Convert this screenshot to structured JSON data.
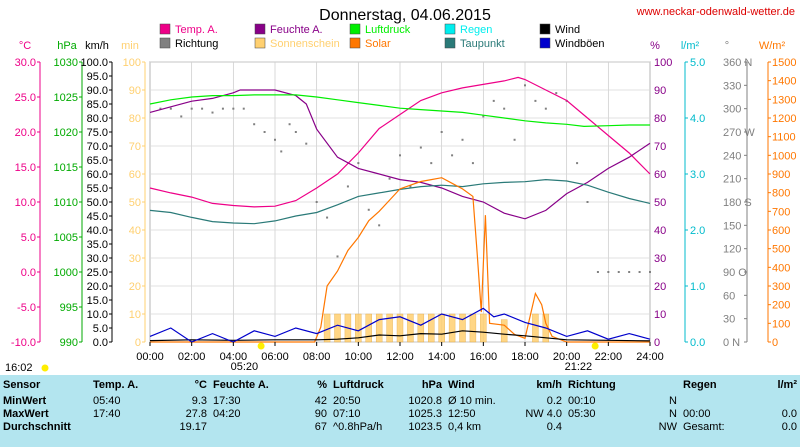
{
  "chart_data": {
    "type": "line",
    "title": "Donnerstag, 04.06.2015",
    "source": "www.neckar-odenwald-wetter.de",
    "x_ticks": [
      "00:00",
      "02:00",
      "04:00",
      "06:00",
      "08:00",
      "10:00",
      "12:00",
      "14:00",
      "16:00",
      "18:00",
      "20:00",
      "22:00",
      "24:00"
    ],
    "sunrise": "05:20",
    "sunset": "21:22",
    "daylength": "16:02",
    "legend": [
      {
        "label": "Temp. A.",
        "color": "#ee0088"
      },
      {
        "label": "Richtung",
        "color": "#808080"
      },
      {
        "label": "Feuchte A.",
        "color": "#880088"
      },
      {
        "label": "Sonnenschein",
        "color": "#ffd070"
      },
      {
        "label": "Luftdruck",
        "color": "#00ee00"
      },
      {
        "label": "Solar",
        "color": "#ff7700"
      },
      {
        "label": "Regen",
        "color": "#00eeee"
      },
      {
        "label": "Taupunkt",
        "color": "#2a7a78"
      },
      {
        "label": "Wind",
        "color": "#000000"
      },
      {
        "label": "Windböen",
        "color": "#0000cc"
      }
    ],
    "axes_left": [
      {
        "unit": "°C",
        "color": "#ee0088",
        "ticks": [
          "30.0",
          "25.0",
          "20.0",
          "15.0",
          "10.0",
          "5.0",
          "0.0",
          "-5.0",
          "-10.0"
        ]
      },
      {
        "unit": "hPa",
        "color": "#00aa00",
        "ticks": [
          "1030",
          "1025",
          "1020",
          "1015",
          "1010",
          "1005",
          "1000",
          "995",
          "990"
        ]
      },
      {
        "unit": "km/h",
        "color": "#000000",
        "ticks": [
          "100.0",
          "95.0",
          "90.0",
          "85.0",
          "80.0",
          "75.0",
          "70.0",
          "65.0",
          "60.0",
          "55.0",
          "50.0",
          "45.0",
          "40.0",
          "35.0",
          "30.0",
          "25.0",
          "20.0",
          "15.0",
          "10.0",
          "5.0",
          "0.0"
        ]
      },
      {
        "unit": "min",
        "color": "#ffd070",
        "ticks": [
          "100",
          "90",
          "80",
          "70",
          "60",
          "50",
          "40",
          "30",
          "20",
          "10",
          "0"
        ]
      }
    ],
    "axes_right": [
      {
        "unit": "%",
        "color": "#880088",
        "ticks": [
          "100",
          "90",
          "80",
          "70",
          "60",
          "50",
          "40",
          "30",
          "20",
          "10",
          "0"
        ]
      },
      {
        "unit": "l/m²",
        "color": "#00bbcc",
        "ticks": [
          "5.0",
          "4.0",
          "3.0",
          "2.0",
          "1.0",
          "0.0"
        ]
      },
      {
        "unit": "°",
        "color": "#808080",
        "ticks": [
          "360 N",
          "330",
          "300",
          "270 W",
          "240",
          "210",
          "180 S",
          "150",
          "120",
          "90 O",
          "60",
          "30",
          "0 N"
        ]
      },
      {
        "unit": "W/m²",
        "color": "#ff7700",
        "ticks": [
          "1500",
          "1400",
          "1300",
          "1200",
          "1100",
          "1000",
          "900",
          "800",
          "700",
          "600",
          "500",
          "400",
          "300",
          "200",
          "100",
          "0"
        ]
      }
    ],
    "series": [
      {
        "name": "Temp. A.",
        "unit": "°C",
        "color": "#ee0088",
        "points": [
          [
            0,
            12.0
          ],
          [
            1,
            11.3
          ],
          [
            2,
            10.7
          ],
          [
            3,
            9.8
          ],
          [
            4,
            9.5
          ],
          [
            5,
            9.3
          ],
          [
            6,
            9.4
          ],
          [
            7,
            10.2
          ],
          [
            8,
            12.0
          ],
          [
            9,
            14.0
          ],
          [
            10,
            17.0
          ],
          [
            11,
            20.5
          ],
          [
            12,
            22.5
          ],
          [
            13,
            24.5
          ],
          [
            14,
            25.6
          ],
          [
            15,
            26.3
          ],
          [
            16,
            26.8
          ],
          [
            17,
            27.3
          ],
          [
            17.67,
            27.8
          ],
          [
            18,
            27.5
          ],
          [
            19,
            26.0
          ],
          [
            20,
            24.5
          ],
          [
            21,
            22.0
          ],
          [
            22,
            19.5
          ],
          [
            23,
            17.0
          ],
          [
            24,
            14.0
          ]
        ]
      },
      {
        "name": "Feuchte A.",
        "unit": "%",
        "color": "#880088",
        "points": [
          [
            0,
            82
          ],
          [
            1,
            84
          ],
          [
            2,
            86
          ],
          [
            3,
            87
          ],
          [
            4,
            89
          ],
          [
            4.33,
            90
          ],
          [
            5,
            90
          ],
          [
            6,
            90
          ],
          [
            7,
            88
          ],
          [
            7.5,
            85
          ],
          [
            8,
            76
          ],
          [
            9,
            66
          ],
          [
            10,
            62
          ],
          [
            11,
            60
          ],
          [
            12,
            58
          ],
          [
            13,
            57
          ],
          [
            14,
            55
          ],
          [
            15,
            52
          ],
          [
            16,
            50
          ],
          [
            17,
            46
          ],
          [
            18,
            44
          ],
          [
            19,
            47
          ],
          [
            20,
            53
          ],
          [
            21,
            57
          ],
          [
            22,
            62
          ],
          [
            23,
            66
          ],
          [
            24,
            71
          ]
        ]
      },
      {
        "name": "Luftdruck",
        "unit": "hPa",
        "color": "#00ee00",
        "points": [
          [
            0,
            1024.0
          ],
          [
            1,
            1024.6
          ],
          [
            2,
            1025.0
          ],
          [
            3,
            1025.2
          ],
          [
            4,
            1025.2
          ],
          [
            5,
            1025.3
          ],
          [
            6,
            1025.3
          ],
          [
            7,
            1025.3
          ],
          [
            8,
            1025.0
          ],
          [
            9,
            1024.6
          ],
          [
            10,
            1024.2
          ],
          [
            11,
            1023.8
          ],
          [
            12,
            1023.4
          ],
          [
            13,
            1023.2
          ],
          [
            14,
            1023.0
          ],
          [
            15,
            1022.8
          ],
          [
            16,
            1022.4
          ],
          [
            17,
            1022.0
          ],
          [
            18,
            1021.6
          ],
          [
            19,
            1021.3
          ],
          [
            20,
            1021.1
          ],
          [
            20.83,
            1020.8
          ],
          [
            22,
            1020.9
          ],
          [
            23,
            1021.0
          ],
          [
            24,
            1021.0
          ]
        ]
      },
      {
        "name": "Taupunkt",
        "unit": "°C",
        "color": "#2a7a78",
        "points": [
          [
            0,
            8.8
          ],
          [
            1,
            8.5
          ],
          [
            2,
            7.8
          ],
          [
            3,
            7.2
          ],
          [
            4,
            7.0
          ],
          [
            5,
            6.9
          ],
          [
            6,
            7.3
          ],
          [
            7,
            8.0
          ],
          [
            8,
            8.5
          ],
          [
            9,
            9.6
          ],
          [
            10,
            10.8
          ],
          [
            11,
            11.3
          ],
          [
            12,
            11.8
          ],
          [
            13,
            12.2
          ],
          [
            14,
            12.4
          ],
          [
            15,
            12.2
          ],
          [
            16,
            12.6
          ],
          [
            17,
            12.8
          ],
          [
            18,
            12.9
          ],
          [
            19,
            13.2
          ],
          [
            20,
            13.0
          ],
          [
            21,
            12.4
          ],
          [
            22,
            11.4
          ],
          [
            23,
            10.5
          ],
          [
            24,
            9.8
          ]
        ]
      },
      {
        "name": "Solar",
        "unit": "W/m²",
        "color": "#ff7700",
        "points": [
          [
            0,
            0
          ],
          [
            7.9,
            0
          ],
          [
            8.2,
            80
          ],
          [
            8.5,
            300
          ],
          [
            9,
            380
          ],
          [
            9.5,
            490
          ],
          [
            10,
            560
          ],
          [
            10.5,
            650
          ],
          [
            11,
            700
          ],
          [
            11.5,
            760
          ],
          [
            12,
            820
          ],
          [
            12.5,
            840
          ],
          [
            13,
            860
          ],
          [
            13.5,
            870
          ],
          [
            14,
            880
          ],
          [
            14.5,
            850
          ],
          [
            15,
            820
          ],
          [
            15.5,
            780
          ],
          [
            15.7,
            480
          ],
          [
            15.9,
            160
          ],
          [
            16.1,
            680
          ],
          [
            16.3,
            100
          ],
          [
            17,
            90
          ],
          [
            17.5,
            40
          ],
          [
            18,
            20
          ],
          [
            18.5,
            260
          ],
          [
            18.8,
            200
          ],
          [
            19,
            100
          ],
          [
            19.3,
            30
          ],
          [
            20,
            0
          ],
          [
            24,
            0
          ]
        ]
      },
      {
        "name": "Wind",
        "unit": "km/h",
        "color": "#000000",
        "points": [
          [
            0,
            0.5
          ],
          [
            2,
            0.8
          ],
          [
            4,
            0.6
          ],
          [
            6,
            0.8
          ],
          [
            8,
            0.8
          ],
          [
            9,
            1.0
          ],
          [
            10,
            1.5
          ],
          [
            11,
            2.5
          ],
          [
            12,
            2.2
          ],
          [
            13,
            3.0
          ],
          [
            14,
            2.8
          ],
          [
            15,
            4.0
          ],
          [
            16,
            3.5
          ],
          [
            17,
            2.8
          ],
          [
            18,
            2.2
          ],
          [
            19,
            1.5
          ],
          [
            20,
            0.8
          ],
          [
            22,
            0.6
          ],
          [
            24,
            0.4
          ]
        ]
      },
      {
        "name": "Windböen",
        "unit": "km/h",
        "color": "#0000cc",
        "points": [
          [
            0,
            2
          ],
          [
            1,
            5
          ],
          [
            2,
            0
          ],
          [
            3,
            3
          ],
          [
            4,
            0
          ],
          [
            5,
            4
          ],
          [
            6,
            2
          ],
          [
            7,
            5
          ],
          [
            8,
            3
          ],
          [
            9,
            6
          ],
          [
            10,
            4
          ],
          [
            11,
            8
          ],
          [
            12,
            9
          ],
          [
            13,
            6
          ],
          [
            14,
            10
          ],
          [
            15,
            8
          ],
          [
            16,
            12
          ],
          [
            16.5,
            9
          ],
          [
            17,
            10
          ],
          [
            18,
            7
          ],
          [
            19,
            5
          ],
          [
            20,
            2
          ],
          [
            21,
            4
          ],
          [
            22,
            1
          ],
          [
            23,
            3
          ],
          [
            24,
            1
          ]
        ]
      }
    ],
    "richtung_points": [
      [
        0.5,
        300
      ],
      [
        1,
        300
      ],
      [
        1.5,
        290
      ],
      [
        2,
        300
      ],
      [
        2.5,
        300
      ],
      [
        3,
        295
      ],
      [
        3.5,
        300
      ],
      [
        4,
        300
      ],
      [
        4.5,
        300
      ],
      [
        5,
        280
      ],
      [
        5.5,
        270
      ],
      [
        6,
        260
      ],
      [
        6.3,
        245
      ],
      [
        6.7,
        280
      ],
      [
        7,
        270
      ],
      [
        7.5,
        255
      ],
      [
        8,
        180
      ],
      [
        8.5,
        160
      ],
      [
        9,
        110
      ],
      [
        9.5,
        200
      ],
      [
        10,
        230
      ],
      [
        10.5,
        170
      ],
      [
        11,
        150
      ],
      [
        11.5,
        210
      ],
      [
        12,
        240
      ],
      [
        12.5,
        200
      ],
      [
        13,
        250
      ],
      [
        13.5,
        230
      ],
      [
        14,
        270
      ],
      [
        14.5,
        240
      ],
      [
        15,
        260
      ],
      [
        15.5,
        230
      ],
      [
        16,
        290
      ],
      [
        16.5,
        310
      ],
      [
        17,
        300
      ],
      [
        17.5,
        260
      ],
      [
        18,
        330
      ],
      [
        18.5,
        310
      ],
      [
        19,
        300
      ],
      [
        19.5,
        320
      ],
      [
        20,
        310
      ],
      [
        20.5,
        230
      ],
      [
        21,
        180
      ],
      [
        21.5,
        90
      ],
      [
        22,
        90
      ],
      [
        22.5,
        90
      ],
      [
        23,
        90
      ],
      [
        23.5,
        90
      ],
      [
        24,
        90
      ]
    ],
    "sonnenschein_points": [
      [
        8.5,
        10
      ],
      [
        9,
        10
      ],
      [
        9.5,
        10
      ],
      [
        10,
        10
      ],
      [
        10.5,
        10
      ],
      [
        11,
        10
      ],
      [
        11.5,
        10
      ],
      [
        12,
        10
      ],
      [
        12.5,
        10
      ],
      [
        13,
        10
      ],
      [
        13.5,
        10
      ],
      [
        14,
        10
      ],
      [
        14.5,
        10
      ],
      [
        15,
        10
      ],
      [
        15.5,
        10
      ],
      [
        16,
        10
      ],
      [
        17,
        8
      ],
      [
        18.5,
        10
      ],
      [
        19,
        10
      ]
    ]
  },
  "stats": {
    "headers": {
      "sensor": "Sensor",
      "temp": "Temp. A.",
      "temp_unit": "°C",
      "hum": "Feuchte A.",
      "hum_unit": "%",
      "press": "Luftdruck",
      "press_unit": "hPa",
      "wind": "Wind",
      "wind_unit": "km/h",
      "dir": "Richtung",
      "rain": "Regen",
      "rain_unit": "l/m²"
    },
    "rows": [
      {
        "label": "MinWert",
        "temp_time": "05:40",
        "temp_val": "9.3",
        "hum_time": "17:30",
        "hum_val": "42",
        "press_time": "20:50",
        "press_val": "1020.8",
        "wind_time": "Ø 10 min.",
        "wind_val": "0.2",
        "dir_time": "00:10",
        "dir_val": "N",
        "rain_time": "",
        "rain_val": ""
      },
      {
        "label": "MaxWert",
        "temp_time": "17:40",
        "temp_val": "27.8",
        "hum_time": "04:20",
        "hum_val": "90",
        "press_time": "07:10",
        "press_val": "1025.3",
        "wind_time": "12:50",
        "wind_val": "NW 4.0",
        "dir_time": "05:30",
        "dir_val": "N",
        "rain_time": "00:00",
        "rain_val": "0.0"
      },
      {
        "label": "Durchschnitt",
        "temp_time": "",
        "temp_val": "19.17",
        "hum_time": "",
        "hum_val": "67",
        "press_time": "^0.8hPa/h",
        "press_val": "1023.5",
        "wind_time": "0,4 km",
        "wind_val": "0.4",
        "dir_time": "",
        "dir_val": "NW",
        "rain_time": "Gesamt:",
        "rain_val": "0.0"
      }
    ]
  }
}
